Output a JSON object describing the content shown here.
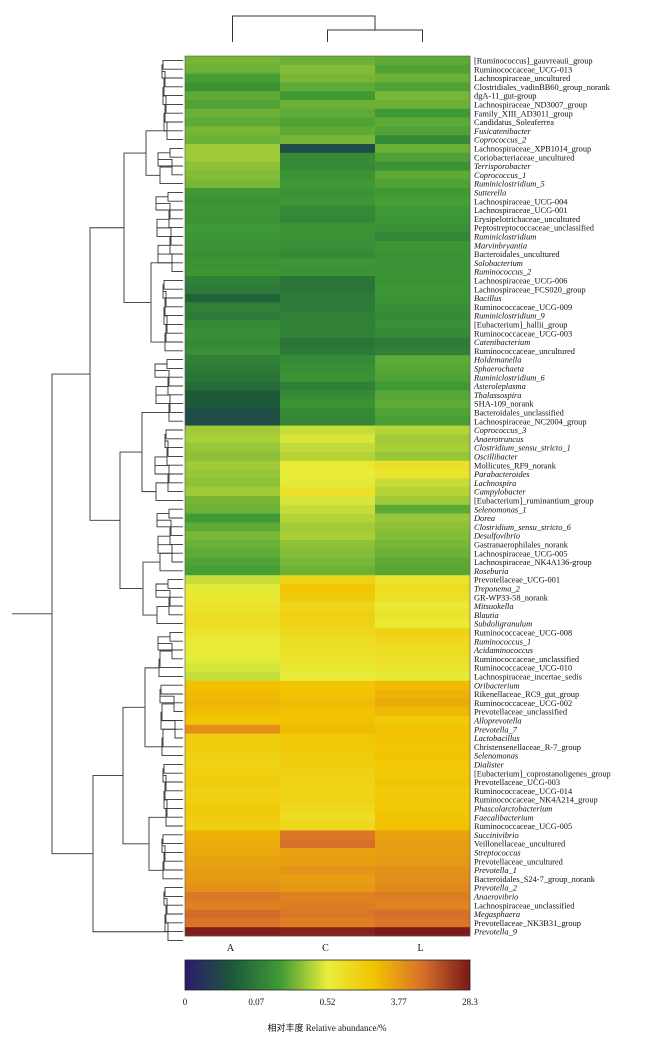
{
  "chart_data": {
    "type": "heatmap",
    "color_scale": {
      "stops": [
        "#2b1a6e",
        "#1c5a3a",
        "#3f9a35",
        "#e8ee3a",
        "#f2c200",
        "#d8702a",
        "#7a1818"
      ],
      "tick_labels": [
        "0",
        "0.07",
        "0.52",
        "3.77",
        "28.3"
      ],
      "title": "相对丰度  Relative abundance/%"
    },
    "columns": [
      "A",
      "C",
      "L"
    ],
    "rows": [
      {
        "label": "[Ruminococcus]_gauvreauii_group",
        "italic": false,
        "values": [
          0.22,
          0.2,
          0.18
        ]
      },
      {
        "label": "Ruminococcaceae_UCG-013",
        "italic": false,
        "values": [
          0.2,
          0.24,
          0.16
        ]
      },
      {
        "label": "Lachnospiraceae_uncultured",
        "italic": false,
        "values": [
          0.15,
          0.22,
          0.2
        ]
      },
      {
        "label": "Clostridiales_vadinBB60_group_norank",
        "italic": false,
        "values": [
          0.12,
          0.18,
          0.16
        ]
      },
      {
        "label": "dgA-11_gut-group",
        "italic": false,
        "values": [
          0.18,
          0.14,
          0.22
        ]
      },
      {
        "label": "Lachnospiraceae_ND3007_group",
        "italic": false,
        "values": [
          0.16,
          0.2,
          0.2
        ]
      },
      {
        "label": "Family_XIII_AD3011_group",
        "italic": false,
        "values": [
          0.2,
          0.18,
          0.14
        ]
      },
      {
        "label": "Candidatus_Soleaferrea",
        "italic": false,
        "values": [
          0.18,
          0.16,
          0.18
        ]
      },
      {
        "label": "Fusicatenibacter",
        "italic": true,
        "values": [
          0.22,
          0.18,
          0.16
        ]
      },
      {
        "label": "Coprococcus_2",
        "italic": true,
        "values": [
          0.2,
          0.22,
          0.1
        ]
      },
      {
        "label": "Lachnospiraceae_XPB1014_group",
        "italic": false,
        "values": [
          0.3,
          0.02,
          0.2
        ]
      },
      {
        "label": "Coriobacteriaceae_uncultured",
        "italic": false,
        "values": [
          0.3,
          0.1,
          0.16
        ]
      },
      {
        "label": "Terrisporobacter",
        "italic": true,
        "values": [
          0.26,
          0.1,
          0.12
        ]
      },
      {
        "label": "Coprococcus_1",
        "italic": true,
        "values": [
          0.24,
          0.12,
          0.18
        ]
      },
      {
        "label": "Ruminiclostridium_5",
        "italic": true,
        "values": [
          0.22,
          0.14,
          0.16
        ]
      },
      {
        "label": "Sutterella",
        "italic": true,
        "values": [
          0.14,
          0.12,
          0.14
        ]
      },
      {
        "label": "Lachnospiraceae_UCG-004",
        "italic": false,
        "values": [
          0.12,
          0.13,
          0.15
        ]
      },
      {
        "label": "Lachnospiraceae_UCG-001",
        "italic": false,
        "values": [
          0.13,
          0.1,
          0.14
        ]
      },
      {
        "label": "Erysipelotrichaceae_uncultured",
        "italic": false,
        "values": [
          0.12,
          0.09,
          0.13
        ]
      },
      {
        "label": "Peptostreptococcaceae_unclassified",
        "italic": false,
        "values": [
          0.14,
          0.12,
          0.11
        ]
      },
      {
        "label": "Ruminiclostridium",
        "italic": true,
        "values": [
          0.13,
          0.12,
          0.09
        ]
      },
      {
        "label": "Marvinbryantia",
        "italic": true,
        "values": [
          0.12,
          0.11,
          0.13
        ]
      },
      {
        "label": "Bacteroidales_uncultured",
        "italic": false,
        "values": [
          0.11,
          0.1,
          0.12
        ]
      },
      {
        "label": "Solobacterium",
        "italic": true,
        "values": [
          0.12,
          0.13,
          0.12
        ]
      },
      {
        "label": "Ruminococcus_2",
        "italic": true,
        "values": [
          0.13,
          0.12,
          0.12
        ]
      },
      {
        "label": "Lachnospiraceae_UCG-006",
        "italic": false,
        "values": [
          0.08,
          0.06,
          0.12
        ]
      },
      {
        "label": "Lachnospiraceae_FCS020_group",
        "italic": false,
        "values": [
          0.07,
          0.06,
          0.13
        ]
      },
      {
        "label": "Bacillus",
        "italic": true,
        "values": [
          0.04,
          0.07,
          0.12
        ]
      },
      {
        "label": "Ruminococcaceae_UCG-009",
        "italic": false,
        "values": [
          0.08,
          0.07,
          0.11
        ]
      },
      {
        "label": "Ruminiclostridium_9",
        "italic": true,
        "values": [
          0.07,
          0.08,
          0.1
        ]
      },
      {
        "label": "[Eubacterium]_hallii_group",
        "italic": false,
        "values": [
          0.1,
          0.08,
          0.11
        ]
      },
      {
        "label": "Ruminococcaceae_UCG-003",
        "italic": false,
        "values": [
          0.11,
          0.08,
          0.1
        ]
      },
      {
        "label": "Catenibacterium",
        "italic": true,
        "values": [
          0.1,
          0.06,
          0.07
        ]
      },
      {
        "label": "Ruminococcaceae_uncultured",
        "italic": false,
        "values": [
          0.11,
          0.07,
          0.08
        ]
      },
      {
        "label": "Holdemanella",
        "italic": true,
        "values": [
          0.08,
          0.1,
          0.18
        ]
      },
      {
        "label": "Sphaerochaeta",
        "italic": true,
        "values": [
          0.07,
          0.11,
          0.17
        ]
      },
      {
        "label": "Ruminiclostridium_6",
        "italic": true,
        "values": [
          0.06,
          0.12,
          0.16
        ]
      },
      {
        "label": "Asteroleplasma",
        "italic": true,
        "values": [
          0.05,
          0.08,
          0.14
        ]
      },
      {
        "label": "Thalassospira",
        "italic": true,
        "values": [
          0.03,
          0.1,
          0.17
        ]
      },
      {
        "label": "SHA-109_norank",
        "italic": false,
        "values": [
          0.03,
          0.12,
          0.18
        ]
      },
      {
        "label": "Bacteroidales_unclassified",
        "italic": false,
        "values": [
          0.02,
          0.1,
          0.16
        ]
      },
      {
        "label": "Lachnospiraceae_NC2004_group",
        "italic": false,
        "values": [
          0.02,
          0.09,
          0.15
        ]
      },
      {
        "label": "Coprococcus_3",
        "italic": true,
        "values": [
          0.3,
          0.4,
          0.35
        ]
      },
      {
        "label": "Anaerotruncus",
        "italic": true,
        "values": [
          0.32,
          0.45,
          0.3
        ]
      },
      {
        "label": "Clostridium_sensu_stricto_1",
        "italic": true,
        "values": [
          0.28,
          0.38,
          0.32
        ]
      },
      {
        "label": "Oscillibacter",
        "italic": true,
        "values": [
          0.26,
          0.35,
          0.28
        ]
      },
      {
        "label": "Mollicutes_RF9_norank",
        "italic": false,
        "values": [
          0.3,
          0.6,
          0.8
        ]
      },
      {
        "label": "Parabacteroides",
        "italic": true,
        "values": [
          0.28,
          0.55,
          0.7
        ]
      },
      {
        "label": "Lachnospira",
        "italic": true,
        "values": [
          0.26,
          0.5,
          0.4
        ]
      },
      {
        "label": "Campylobacter",
        "italic": true,
        "values": [
          0.3,
          0.8,
          0.35
        ]
      },
      {
        "label": "[Eubacterium]_ruminantium_group",
        "italic": false,
        "values": [
          0.22,
          0.45,
          0.3
        ]
      },
      {
        "label": "Selenomonas_1",
        "italic": true,
        "values": [
          0.2,
          0.4,
          0.18
        ]
      },
      {
        "label": "Dorea",
        "italic": true,
        "values": [
          0.14,
          0.35,
          0.28
        ]
      },
      {
        "label": "Clostridium_sensu_stricto_6",
        "italic": true,
        "values": [
          0.18,
          0.3,
          0.26
        ]
      },
      {
        "label": "Desulfovibrio",
        "italic": true,
        "values": [
          0.22,
          0.32,
          0.24
        ]
      },
      {
        "label": "Gastranaerophilales_norank",
        "italic": false,
        "values": [
          0.2,
          0.26,
          0.22
        ]
      },
      {
        "label": "Lachnospiraceae_UCG-005",
        "italic": false,
        "values": [
          0.18,
          0.24,
          0.2
        ]
      },
      {
        "label": "Lachnospiraceae_NK4A136-group",
        "italic": false,
        "values": [
          0.16,
          0.22,
          0.18
        ]
      },
      {
        "label": "Roseburia",
        "italic": true,
        "values": [
          0.15,
          0.2,
          0.17
        ]
      },
      {
        "label": "Prevotellaceae_UCG-001",
        "italic": false,
        "values": [
          0.4,
          1.2,
          0.7
        ]
      },
      {
        "label": "Treponema_2",
        "italic": true,
        "values": [
          0.5,
          1.8,
          0.9
        ]
      },
      {
        "label": "GR-WP33-58_norank",
        "italic": false,
        "values": [
          0.6,
          1.5,
          0.8
        ]
      },
      {
        "label": "Mitsuokella",
        "italic": true,
        "values": [
          0.7,
          1.1,
          0.6
        ]
      },
      {
        "label": "Blautia",
        "italic": true,
        "values": [
          0.8,
          1.3,
          0.7
        ]
      },
      {
        "label": "Subdoligranulum",
        "italic": true,
        "values": [
          0.9,
          1.2,
          0.6
        ]
      },
      {
        "label": "Ruminococcaceae_UCG-008",
        "italic": false,
        "values": [
          0.7,
          1.0,
          1.2
        ]
      },
      {
        "label": "Ruminococcus_1",
        "italic": true,
        "values": [
          0.6,
          0.9,
          1.0
        ]
      },
      {
        "label": "Acidaminococcus",
        "italic": true,
        "values": [
          0.55,
          0.8,
          0.9
        ]
      },
      {
        "label": "Ruminococcaceae_unclassified",
        "italic": false,
        "values": [
          0.5,
          0.7,
          0.8
        ]
      },
      {
        "label": "Ruminococcaceae_UCG-010",
        "italic": false,
        "values": [
          0.45,
          0.6,
          0.7
        ]
      },
      {
        "label": "Lachnospiraceae_incertae_sedis",
        "italic": false,
        "values": [
          0.4,
          0.55,
          0.6
        ]
      },
      {
        "label": "Oribacterium",
        "italic": true,
        "values": [
          2.0,
          1.8,
          2.2
        ]
      },
      {
        "label": "Rikenellaceae_RC9_gut_group",
        "italic": false,
        "values": [
          2.2,
          2.0,
          2.5
        ]
      },
      {
        "label": "Ruminococcaceae_UCG-002",
        "italic": false,
        "values": [
          2.4,
          2.2,
          2.8
        ]
      },
      {
        "label": "Prevotellaceae_unclassified",
        "italic": false,
        "values": [
          2.1,
          1.9,
          2.3
        ]
      },
      {
        "label": "Alloprevotella",
        "italic": true,
        "values": [
          1.8,
          2.0,
          1.6
        ]
      },
      {
        "label": "Prevotella_7",
        "italic": true,
        "values": [
          4.5,
          2.2,
          1.8
        ]
      },
      {
        "label": "Lactobacillus",
        "italic": true,
        "values": [
          1.5,
          1.7,
          2.0
        ]
      },
      {
        "label": "Christensenellaceae_R-7_group",
        "italic": false,
        "values": [
          1.4,
          1.6,
          1.8
        ]
      },
      {
        "label": "Selenomonas",
        "italic": true,
        "values": [
          1.3,
          1.5,
          1.9
        ]
      },
      {
        "label": "Dialister",
        "italic": true,
        "values": [
          1.2,
          1.4,
          1.7
        ]
      },
      {
        "label": "[Eubacterium]_coprostanoligenes_group",
        "italic": false,
        "values": [
          1.4,
          1.3,
          1.6
        ]
      },
      {
        "label": "Prevotellaceae_UCG-003",
        "italic": false,
        "values": [
          1.5,
          1.2,
          1.8
        ]
      },
      {
        "label": "Ruminococcaceae_UCG-014",
        "italic": false,
        "values": [
          1.3,
          1.1,
          1.5
        ]
      },
      {
        "label": "Ruminococcaceae_NK4A214_group",
        "italic": false,
        "values": [
          1.4,
          1.2,
          1.6
        ]
      },
      {
        "label": "Phascolarctobacterium",
        "italic": true,
        "values": [
          1.6,
          1.0,
          1.7
        ]
      },
      {
        "label": "Faecalibacterium",
        "italic": true,
        "values": [
          1.5,
          0.9,
          1.8
        ]
      },
      {
        "label": "Ruminococcaceae_UCG-005",
        "italic": false,
        "values": [
          1.4,
          1.0,
          2.0
        ]
      },
      {
        "label": "Succinivibrio",
        "italic": true,
        "values": [
          2.6,
          6.5,
          3.2
        ]
      },
      {
        "label": "Veillonellaceae_uncultured",
        "italic": false,
        "values": [
          2.8,
          7.5,
          3.5
        ]
      },
      {
        "label": "Streptococcus",
        "italic": true,
        "values": [
          3.0,
          3.2,
          3.5
        ]
      },
      {
        "label": "Prevotellaceae_uncultured",
        "italic": false,
        "values": [
          3.2,
          3.4,
          3.8
        ]
      },
      {
        "label": "Prevotella_1",
        "italic": true,
        "values": [
          3.6,
          4.0,
          4.2
        ]
      },
      {
        "label": "Bacteroidales_S24-7_group_norank",
        "italic": false,
        "values": [
          3.8,
          3.5,
          4.5
        ]
      },
      {
        "label": "Prevotella_2",
        "italic": true,
        "values": [
          4.2,
          3.8,
          4.8
        ]
      },
      {
        "label": "Anaerovibrio",
        "italic": true,
        "values": [
          6.5,
          5.5,
          6.0
        ]
      },
      {
        "label": "Lachnospiraceae_unclassified",
        "italic": false,
        "values": [
          5.5,
          6.0,
          5.2
        ]
      },
      {
        "label": "Megasphaera",
        "italic": true,
        "values": [
          8.0,
          6.5,
          7.5
        ]
      },
      {
        "label": "Prevotellaceae_NK3B31_group",
        "italic": false,
        "values": [
          7.0,
          5.8,
          6.8
        ]
      },
      {
        "label": "Prevotella_9",
        "italic": true,
        "values": [
          26.0,
          24.0,
          27.0
        ]
      }
    ]
  }
}
